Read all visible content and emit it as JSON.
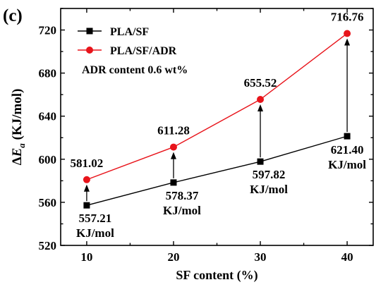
{
  "panel_label": "(c)",
  "colors": {
    "PLA/SF": "#000000",
    "PLA/SF/ADR": "#e8141b",
    "arrow": "#000000",
    "axis": "#000000"
  },
  "chart_data": {
    "type": "line",
    "xlabel": "SF content (%)",
    "ylabel_prefix": "Δ",
    "ylabel_var": "E",
    "ylabel_sub": "a",
    "ylabel_unit": "(KJ/mol)",
    "xlim": [
      7,
      43
    ],
    "ylim": [
      520,
      740
    ],
    "x_ticks": [
      10,
      20,
      30,
      40
    ],
    "y_ticks": [
      520,
      560,
      600,
      640,
      680,
      720
    ],
    "grid": false,
    "legend_position": "top-left",
    "annotation": "ADR content 0.6 wt%",
    "series": [
      {
        "name": "PLA/SF",
        "marker": "square",
        "x": [
          10,
          20,
          30,
          40
        ],
        "values": [
          557.21,
          578.37,
          597.82,
          621.4
        ],
        "labels": [
          "557.21",
          "578.37",
          "597.82",
          "621.40"
        ],
        "unit_label": "KJ/mol"
      },
      {
        "name": "PLA/SF/ADR",
        "marker": "circle",
        "x": [
          10,
          20,
          30,
          40
        ],
        "values": [
          581.02,
          611.28,
          655.52,
          716.76
        ],
        "labels": [
          "581.02",
          "611.28",
          "655.52",
          "716.76"
        ]
      }
    ]
  }
}
